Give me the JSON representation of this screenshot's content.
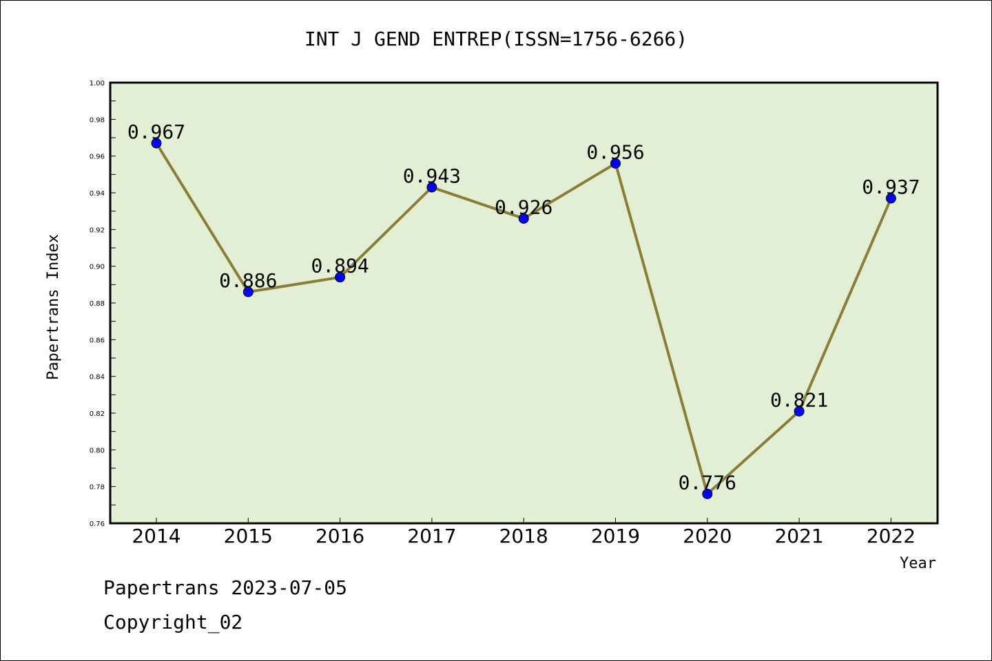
{
  "chart_data": {
    "type": "line",
    "title": "INT J GEND ENTREP(ISSN=1756-6266)",
    "xlabel": "Year",
    "ylabel": "Papertrans Index",
    "categories": [
      "2014",
      "2015",
      "2016",
      "2017",
      "2018",
      "2019",
      "2020",
      "2021",
      "2022"
    ],
    "values": [
      0.967,
      0.886,
      0.894,
      0.943,
      0.926,
      0.956,
      0.776,
      0.821,
      0.937
    ],
    "data_labels": [
      "0.967",
      "0.886",
      "0.894",
      "0.943",
      "0.926",
      "0.956",
      "0.776",
      "0.821",
      "0.937"
    ],
    "ylim": [
      0.76,
      1.0
    ],
    "yticks": [
      "0.76",
      "0.78",
      "0.80",
      "0.82",
      "0.84",
      "0.86",
      "0.88",
      "0.90",
      "0.92",
      "0.94",
      "0.96",
      "0.98",
      "1.00"
    ],
    "grid": false,
    "colors": {
      "plot_background": "#e2efd4",
      "line": "#8b7d38",
      "marker": "#0000ff"
    }
  },
  "footer": {
    "line1": "Papertrans 2023-07-05",
    "line2": "Copyright_02"
  }
}
